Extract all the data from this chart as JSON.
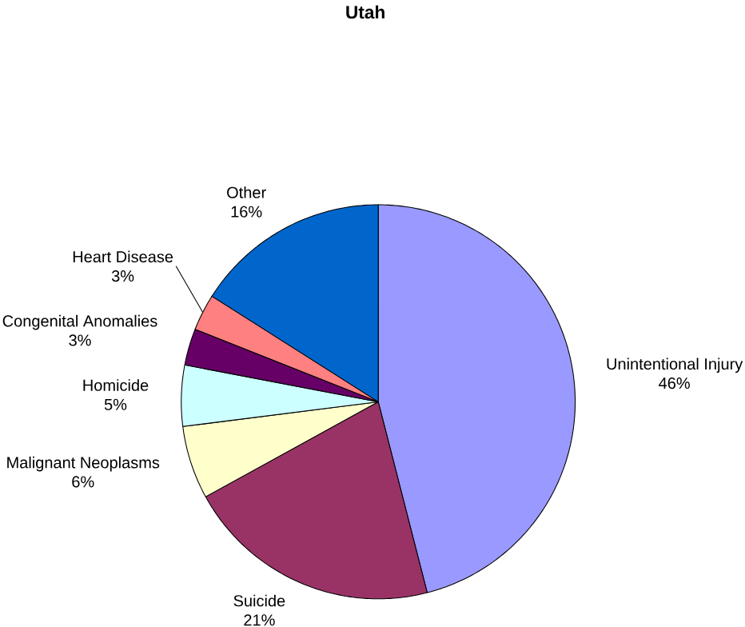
{
  "chart_data": {
    "type": "pie",
    "title": "Utah",
    "categories": [
      "Unintentional Injury",
      "Suicide",
      "Malignant Neoplasms",
      "Homicide",
      "Congenital Anomalies",
      "Heart Disease",
      "Other"
    ],
    "values": [
      46,
      21,
      6,
      5,
      3,
      3,
      16
    ],
    "value_labels": [
      "46%",
      "21%",
      "6%",
      "5%",
      "3%",
      "3%",
      "16%"
    ],
    "colors": [
      "#9999ff",
      "#993366",
      "#ffffcc",
      "#ccffff",
      "#660066",
      "#ff8080",
      "#0066cc"
    ]
  }
}
